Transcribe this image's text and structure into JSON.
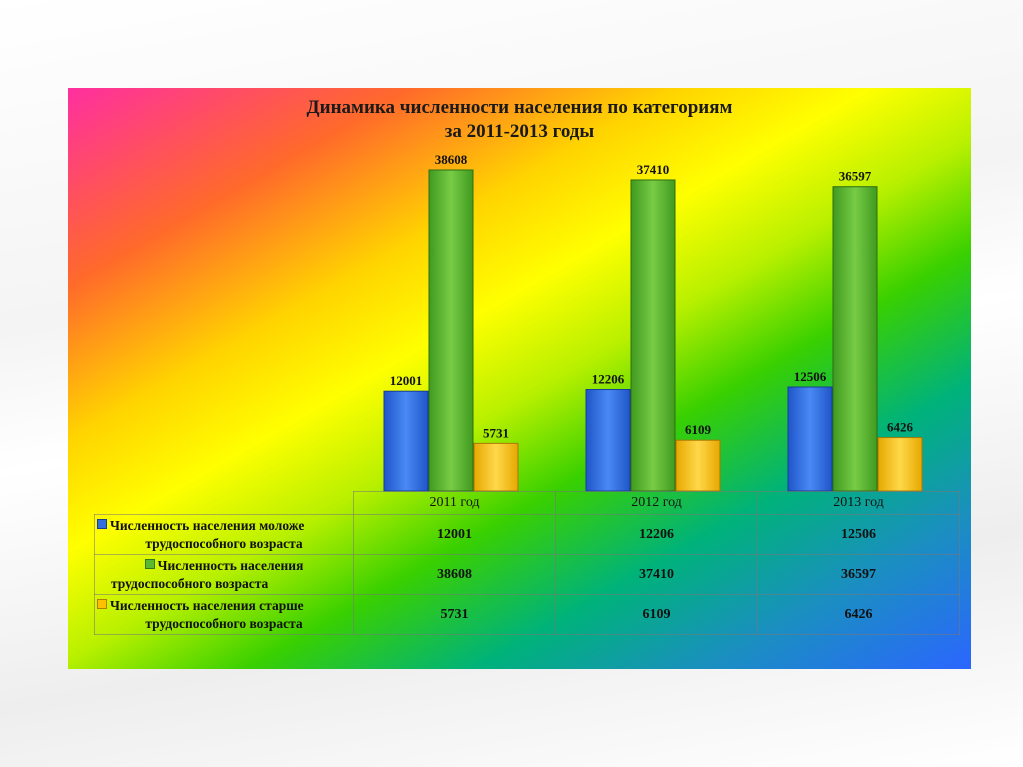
{
  "chart_data": {
    "type": "bar",
    "title_line1": "Динамика численности населения по категориям",
    "title_line2": "за 2011-2013 годы",
    "categories": [
      "2011 год",
      "2012 год",
      "2013 год"
    ],
    "series": [
      {
        "name": "Численность населения моложе трудоспособного возраста",
        "name_line1": "Численность населения моложе",
        "name_line2": "трудоспособного возраста",
        "color": "#2f6fe0",
        "values": [
          12001,
          12206,
          12506
        ]
      },
      {
        "name": "Численность населения трудоспособного возраста",
        "name_line1": "Численность населения",
        "name_line2": "трудоспособного возраста",
        "color": "#5bb833",
        "values": [
          38608,
          37410,
          36597
        ]
      },
      {
        "name": "Численность населения старше трудоспособного возраста",
        "name_line1": "Численность населения старше",
        "name_line2": "трудоспособного возраста",
        "color": "#ffc000",
        "values": [
          5731,
          6109,
          6426
        ]
      }
    ],
    "ylim": [
      0,
      40000
    ],
    "grid": false,
    "legend": "data-table"
  }
}
